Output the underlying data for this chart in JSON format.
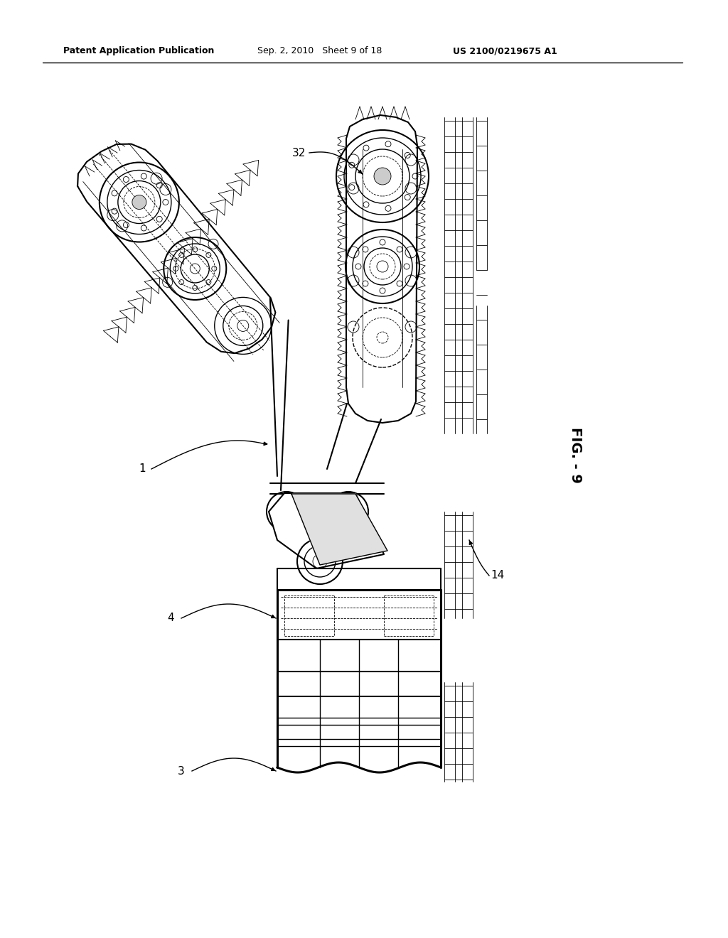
{
  "bg_color": "#ffffff",
  "header_left": "Patent Application Publication",
  "header_mid": "Sep. 2, 2010   Sheet 9 of 18",
  "header_right": "US 2100/0219675 A1",
  "fig_label": "FIG. - 9",
  "line_color": "#000000"
}
